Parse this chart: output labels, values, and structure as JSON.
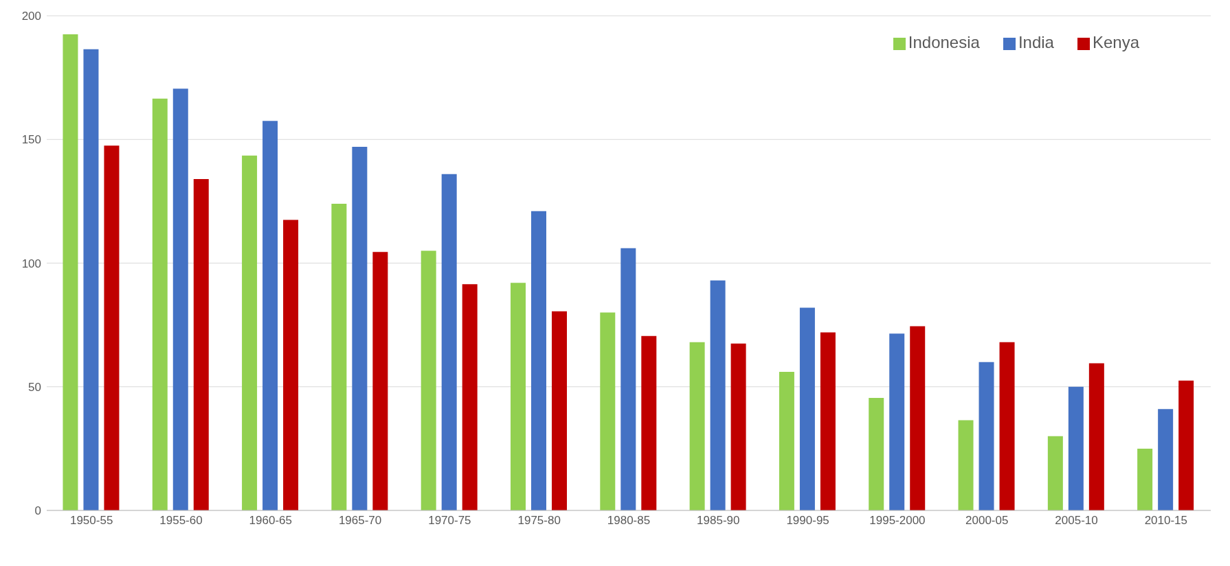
{
  "chart_data": {
    "type": "bar",
    "categories": [
      "1950-55",
      "1955-60",
      "1960-65",
      "1965-70",
      "1970-75",
      "1975-80",
      "1980-85",
      "1985-90",
      "1990-95",
      "1995-2000",
      "2000-05",
      "2005-10",
      "2010-15"
    ],
    "series": [
      {
        "name": "Indonesia",
        "color": "#92d050",
        "values": [
          192.5,
          166.5,
          143.5,
          124,
          105,
          92,
          80,
          68,
          56,
          45.5,
          36.5,
          30,
          25
        ]
      },
      {
        "name": "India",
        "color": "#4472c4",
        "values": [
          186.5,
          170.5,
          157.5,
          147,
          136,
          121,
          106,
          93,
          82,
          71.5,
          60,
          50,
          41
        ]
      },
      {
        "name": "Kenya",
        "color": "#c00000",
        "values": [
          147.5,
          134,
          117.5,
          104.5,
          91.5,
          80.5,
          70.5,
          67.5,
          72,
          74.5,
          68,
          59.5,
          52.5
        ]
      }
    ],
    "ylim": [
      0,
      200
    ],
    "yticks": [
      0,
      50,
      100,
      150,
      200
    ],
    "grid": "y",
    "legend": "top right"
  }
}
